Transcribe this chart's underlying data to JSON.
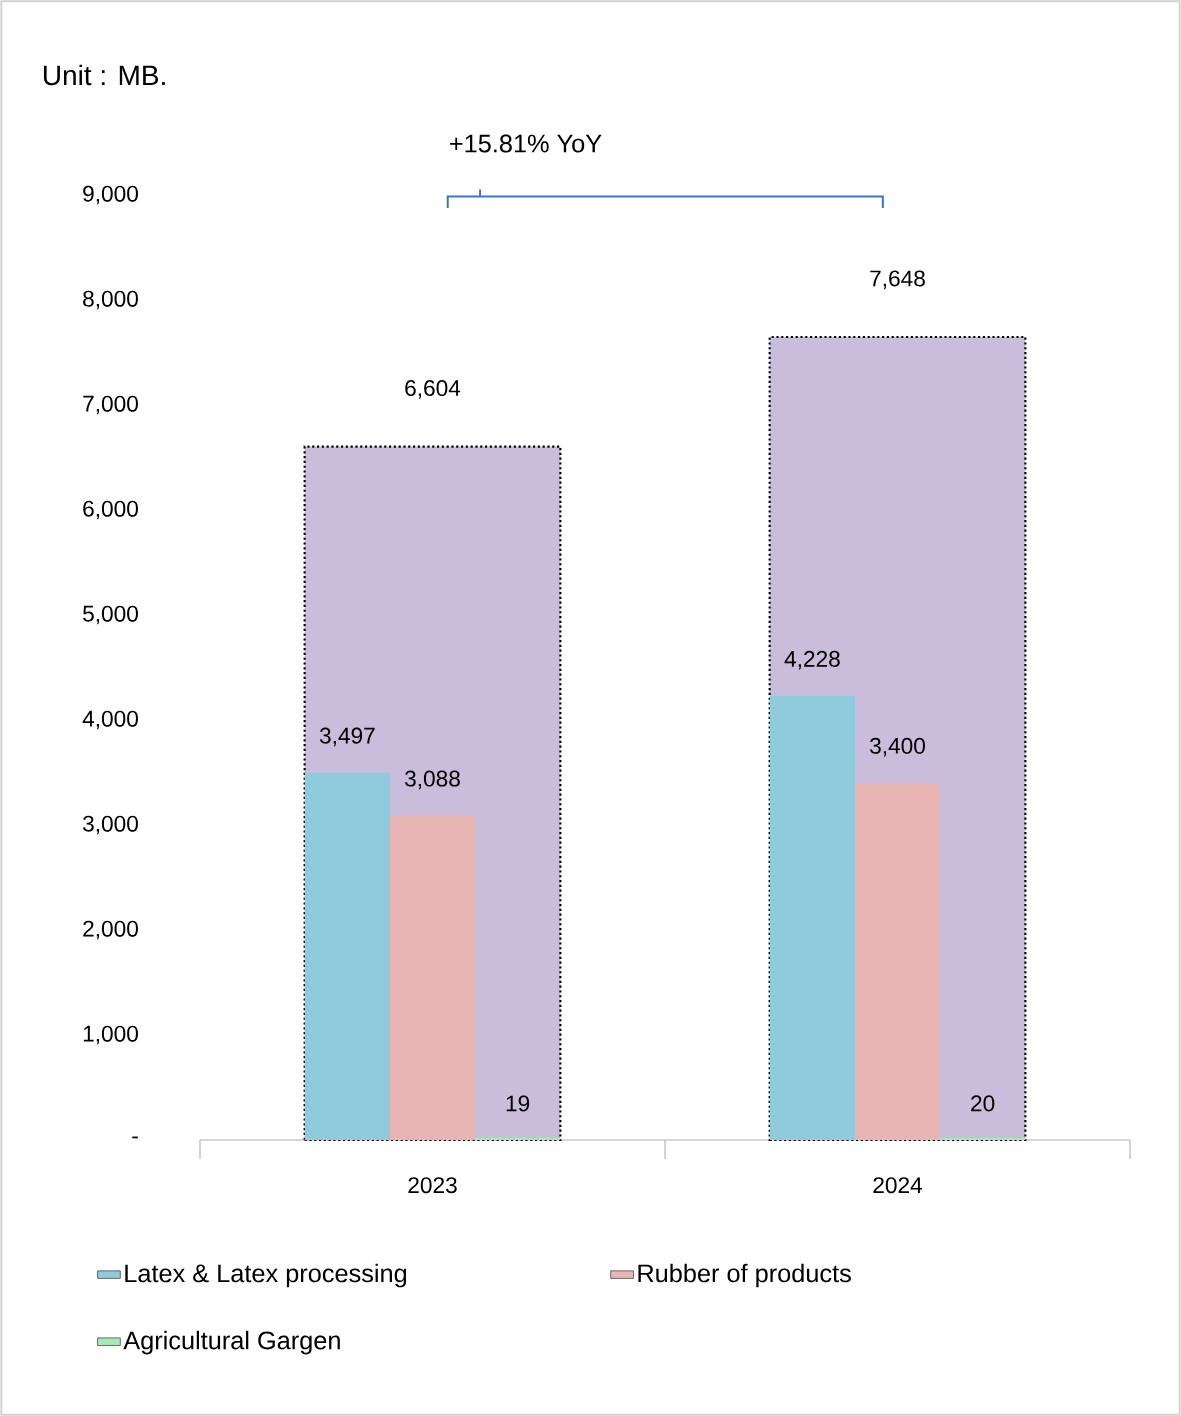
{
  "chart_data": {
    "type": "bar",
    "title": "Unit : MB.",
    "annotations": [
      "+15.81% YoY"
    ],
    "categories": [
      "2023",
      "2024"
    ],
    "series": [
      {
        "color": "#c9bddb",
        "values": [
          6604,
          7648
        ],
        "value_labels": [
          "6,604",
          "7,648"
        ]
      },
      {
        "name": "Latex & Latex processing",
        "color": "#8ecbdc",
        "values": [
          3497,
          4228
        ],
        "value_labels": [
          "3,497",
          "4,228"
        ]
      },
      {
        "name": "Rubber of products",
        "color": "#e8b4b4",
        "values": [
          3088,
          3400
        ],
        "value_labels": [
          "3,088",
          "3,400"
        ]
      },
      {
        "name": "Agricultural Gargen",
        "color": "#a8e8b8",
        "values": [
          19,
          20
        ],
        "value_labels": [
          "19",
          "20"
        ]
      }
    ],
    "ylim": [
      0,
      9000
    ],
    "yticks": [
      {
        "value": 0,
        "label": "-"
      },
      {
        "value": 1000,
        "label": "1,000"
      },
      {
        "value": 2000,
        "label": "2,000"
      },
      {
        "value": 3000,
        "label": "3,000"
      },
      {
        "value": 4000,
        "label": "4,000"
      },
      {
        "value": 5000,
        "label": "5,000"
      },
      {
        "value": 6000,
        "label": "6,000"
      },
      {
        "value": 7000,
        "label": "7,000"
      },
      {
        "value": 8000,
        "label": "8,000"
      },
      {
        "value": 9000,
        "label": "9,000"
      }
    ],
    "grid": false,
    "legend": "bottom"
  }
}
